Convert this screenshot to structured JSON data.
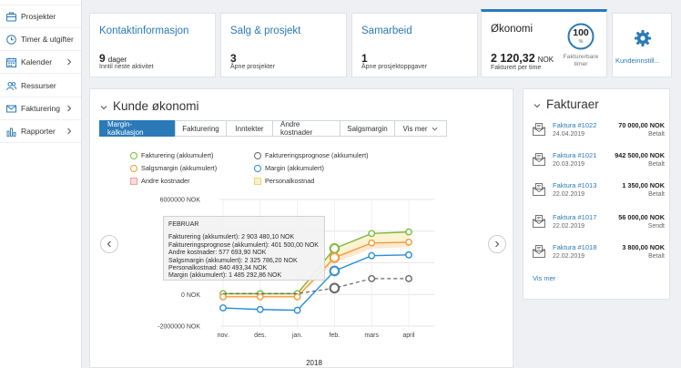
{
  "sidebar": {
    "items": [
      {
        "label": "Prosjekter",
        "icon": "briefcase-icon",
        "chevron": false
      },
      {
        "label": "Timer & utgifter",
        "icon": "clock-icon",
        "chevron": false
      },
      {
        "label": "Kalender",
        "icon": "calendar-icon",
        "chevron": true
      },
      {
        "label": "Ressurser",
        "icon": "people-icon",
        "chevron": false
      },
      {
        "label": "Fakturering",
        "icon": "invoice-icon",
        "chevron": true
      },
      {
        "label": "Rapporter",
        "icon": "bar-chart-icon",
        "chevron": true
      }
    ]
  },
  "cards": {
    "contact": {
      "title": "Kontaktinformasjon",
      "value": "9",
      "unit": "dager",
      "sub": "Inntil neste aktivitet"
    },
    "sales": {
      "title": "Salg & prosjekt",
      "value": "3",
      "sub": "Åpne prosjekter"
    },
    "collab": {
      "title": "Samarbeid",
      "value": "1",
      "sub": "Åpne prosjektoppgaver"
    },
    "economy": {
      "title": "Økonomi",
      "value": "2 120,32",
      "unit": "NOK",
      "sub": "Fakturert per time",
      "gauge_value": "100",
      "gauge_unit": "%",
      "gauge_label_1": "Fakturerbare",
      "gauge_label_2": "timer",
      "gauge_fraction": 1.0
    },
    "settings": {
      "label": "Kundeinnstill..."
    }
  },
  "panel": {
    "title": "Kunde økonomi",
    "tabs": [
      "Margin-kalkulasjon",
      "Fakturering",
      "Inntekter",
      "Andre kostnader",
      "Salgsmargin",
      "Vis mer"
    ],
    "active_tab": 0
  },
  "legend": {
    "items": [
      {
        "label": "Fakturering (akkumulert)",
        "color": "#7cba3d",
        "shape": "circle"
      },
      {
        "label": "Faktureringsprognose (akkumulert)",
        "color": "#666666",
        "shape": "circle"
      },
      {
        "label": "Salgsmargin (akkumulert)",
        "color": "#f29a38",
        "shape": "circle"
      },
      {
        "label": "Margin (akkumulert)",
        "color": "#2a8ed4",
        "shape": "circle"
      },
      {
        "label": "Andre kostnader",
        "color": "#f4c2c2",
        "shape": "square"
      },
      {
        "label": "Personalkostnad",
        "color": "#fbe7a8",
        "shape": "square"
      }
    ]
  },
  "chart_data": {
    "type": "line",
    "categories": [
      "nov.",
      "des.",
      "jan.",
      "feb.",
      "mars",
      "april"
    ],
    "xlabel": "2018",
    "y_ticks": [
      "6000000 NOK",
      "4",
      "2",
      "0 NOK",
      "-2000000 NOK"
    ],
    "y_tick_values": [
      6000000,
      4000000,
      2000000,
      0,
      -2000000
    ],
    "ylim": [
      -2000000,
      6000000
    ],
    "grid": true,
    "series": [
      {
        "name": "Fakturering (akkumulert)",
        "color": "#7cba3d",
        "values": [
          50000,
          50000,
          50000,
          2903480,
          3850000,
          3950000
        ]
      },
      {
        "name": "Personalkostnad",
        "color": "#fbe7a8",
        "band": true,
        "values": [
          -150000,
          -150000,
          -150000,
          2000000,
          2900000,
          3000000
        ]
      },
      {
        "name": "Salgsmargin (akkumulert)",
        "color": "#f29a38",
        "values": [
          -150000,
          -150000,
          -150000,
          2325786,
          3250000,
          3300000
        ]
      },
      {
        "name": "Margin (akkumulert)",
        "color": "#2a8ed4",
        "values": [
          -850000,
          -950000,
          -1000000,
          1485293,
          2450000,
          2500000
        ]
      },
      {
        "name": "Faktureringsprognose (akkumulert)",
        "color": "#666666",
        "dashed": true,
        "values": [
          null,
          null,
          null,
          401500,
          1000000,
          1000000
        ]
      }
    ]
  },
  "tooltip": {
    "title": "FEBRUAR",
    "lines": [
      "Fakturering (akkumulert): 2 903 480,10 NOK",
      "Faktureringsprognose (akkumulert): 401 500,00 NOK",
      "Andre kostnader: 577 693,90 NOK",
      "Salgsmargin (akkumulert): 2 325 786,20 NOK",
      "Personalkostnad: 840 493,34 NOK",
      "Margin (akkumulert): 1 485 292,86 NOK"
    ]
  },
  "invoices": {
    "title": "Fakturaer",
    "items": [
      {
        "link": "Faktura #1022",
        "amount": "70 000,00 NOK",
        "date": "24.04.2019",
        "status": "Betalt"
      },
      {
        "link": "Faktura #1021",
        "amount": "942 500,00 NOK",
        "date": "20.03.2019",
        "status": "Betalt"
      },
      {
        "link": "Faktura #1013",
        "amount": "1 350,00 NOK",
        "date": "22.02.2019",
        "status": "Betalt"
      },
      {
        "link": "Faktura #1017",
        "amount": "56 000,00 NOK",
        "date": "22.02.2019",
        "status": "Sendt"
      },
      {
        "link": "Faktura #1018",
        "amount": "3 800,00 NOK",
        "date": "22.02.2019",
        "status": "Betalt"
      }
    ],
    "more": "Vis mer"
  }
}
